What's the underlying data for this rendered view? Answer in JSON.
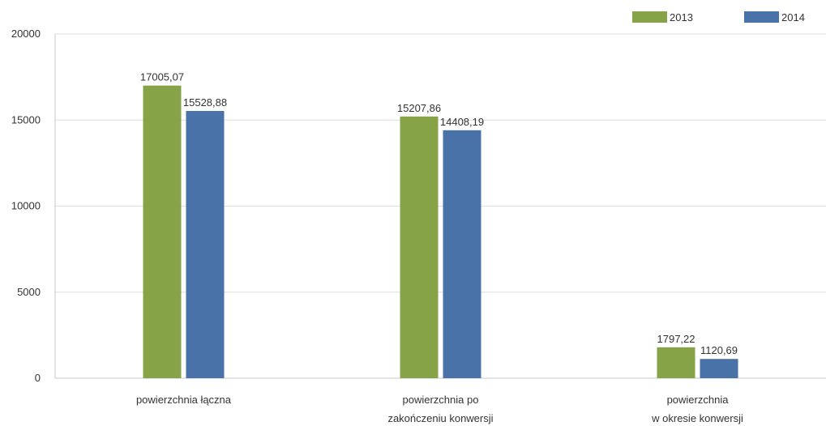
{
  "chart_data": {
    "type": "bar",
    "categories": [
      [
        "powierzchnia łączna"
      ],
      [
        "powierzchnia po",
        "zakończeniu konwersji"
      ],
      [
        "powierzchnia",
        "w okresie konwersji"
      ]
    ],
    "series": [
      {
        "name": "2013",
        "color": "#86a347",
        "values": [
          17005.07,
          15207.86,
          1797.22
        ],
        "labels": [
          "17005,07",
          "15207,86",
          "1797,22"
        ]
      },
      {
        "name": "2014",
        "color": "#4872a8",
        "values": [
          15528.88,
          14408.19,
          1120.69
        ],
        "labels": [
          "15528,88",
          "14408,19",
          "1120,69"
        ]
      }
    ],
    "yticks": [
      "0",
      "5000",
      "10000",
      "15000",
      "20000"
    ],
    "ylim": [
      0,
      20000
    ],
    "grid": true,
    "legend_position": "top-right",
    "xlabel": "",
    "ylabel": "",
    "title": ""
  }
}
